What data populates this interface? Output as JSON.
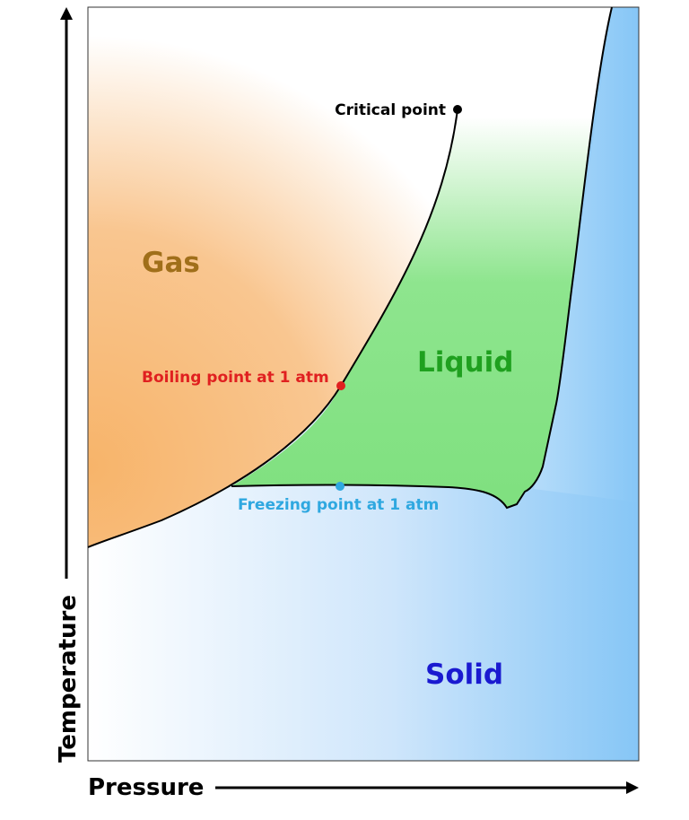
{
  "axes": {
    "x_label": "Pressure",
    "y_label": "Temperature"
  },
  "regions": {
    "gas": "Gas",
    "liquid": "Liquid",
    "solid": "Solid"
  },
  "points": {
    "critical": "Critical point",
    "boiling": "Boiling point at 1 atm",
    "freezing": "Freezing point at 1 atm"
  },
  "colors": {
    "gas": "#f7b86a",
    "gas_text": "#a06f1a",
    "liquid": "#7fe07f",
    "liquid_text": "#1fa01f",
    "solid": "#8ccaf7",
    "solid_text": "#1a1ad0",
    "boiling": "#e02020",
    "freezing": "#2fa8e0",
    "critical": "#000000"
  }
}
